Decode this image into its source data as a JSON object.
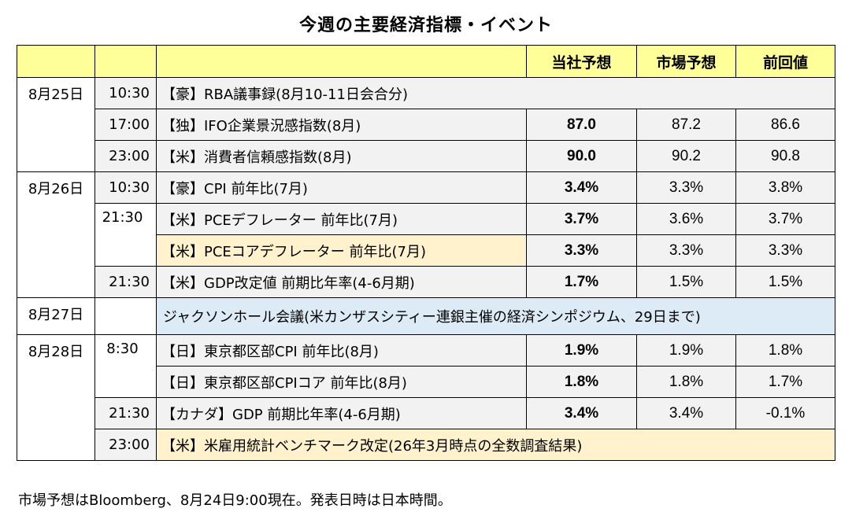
{
  "title": "今週の主要経済指標・イベント",
  "headers": {
    "own_forecast": "当社予想",
    "market_forecast": "市場予想",
    "previous": "前回値"
  },
  "rows": [
    {
      "date": "8月25日",
      "time": "10:30",
      "name": "【豪】RBA議事録(8月10-11日会合分)",
      "own": "",
      "market": "",
      "prev": ""
    },
    {
      "date": "",
      "time": "17:00",
      "name": "【独】IFO企業景況感指数(8月)",
      "own": "87.0",
      "market": "87.2",
      "prev": "86.6"
    },
    {
      "date": "",
      "time": "23:00",
      "name": "【米】消費者信頼感指数(8月)",
      "own": "90.0",
      "market": "90.2",
      "prev": "90.8"
    },
    {
      "date": "8月26日",
      "time": "10:30",
      "name": "【豪】CPI 前年比(7月)",
      "own": "3.4%",
      "market": "3.3%",
      "prev": "3.8%"
    },
    {
      "date": "",
      "time": "21:30",
      "name": "【米】PCEデフレーター 前年比(7月)",
      "own": "3.7%",
      "market": "3.6%",
      "prev": "3.7%"
    },
    {
      "date": "",
      "time": "",
      "name": "【米】PCEコアデフレーター 前年比(7月)",
      "own": "3.3%",
      "market": "3.3%",
      "prev": "3.3%"
    },
    {
      "date": "",
      "time": "21:30",
      "name": "【米】GDP改定値 前期比年率(4-6月期)",
      "own": "1.7%",
      "market": "1.5%",
      "prev": "1.5%"
    },
    {
      "date": "8月27日",
      "time": "",
      "name": "ジャクソンホール会議(米カンザスシティー連銀主催の経済シンポジウム、29日まで)",
      "own": "",
      "market": "",
      "prev": ""
    },
    {
      "date": "8月28日",
      "time": "8:30",
      "name": "【日】東京都区部CPI 前年比(8月)",
      "own": "1.9%",
      "market": "1.9%",
      "prev": "1.8%"
    },
    {
      "date": "",
      "time": "",
      "name": "【日】東京都区部CPIコア 前年比(8月)",
      "own": "1.8%",
      "market": "1.8%",
      "prev": "1.7%"
    },
    {
      "date": "",
      "time": "21:30",
      "name": "【カナダ】GDP 前期比年率(4-6月期)",
      "own": "3.4%",
      "market": "3.4%",
      "prev": "-0.1%"
    },
    {
      "date": "",
      "time": "23:00",
      "name": "【米】米雇用統計ベンチマーク改定(26年3月時点の全数調査結果)",
      "own": "",
      "market": "",
      "prev": ""
    }
  ],
  "footnote": "市場予想はBloomberg、8月24日9:00現在。発表日時は日本時間。",
  "colors": {
    "header": "#ffff99",
    "row_gray": "#f2f2f2",
    "row_highlight": "#fff2cc",
    "row_event": "#ddebf7"
  }
}
